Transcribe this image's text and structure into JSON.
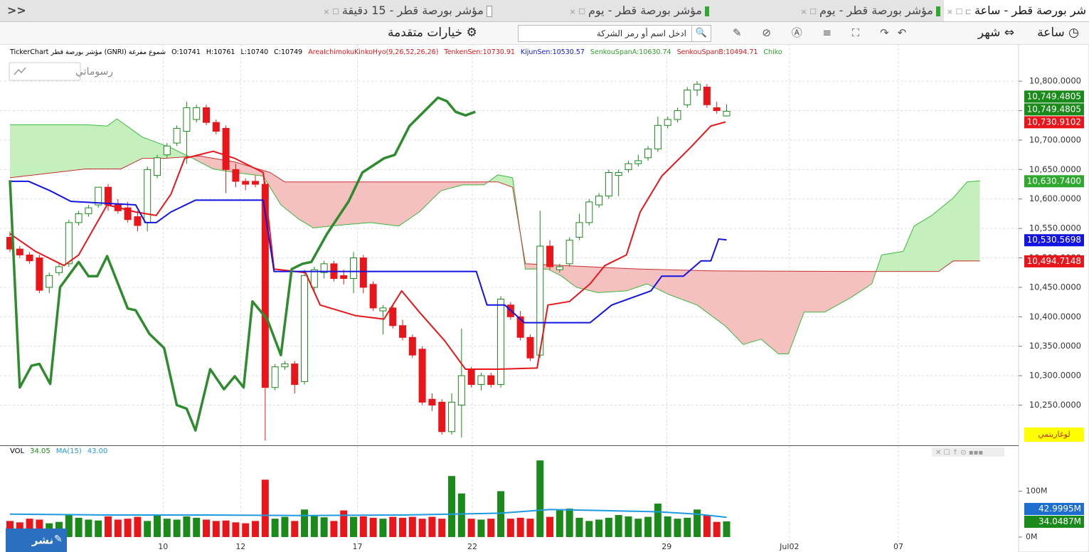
{
  "collapse": "<<",
  "tabs": [
    "شر بورصة قطر - ساعة",
    "مؤشر بورصة قطر - يوم",
    "مؤشر بورصة قطر - يوم",
    "مؤشر بورصة قطر - 15 دقيقة"
  ],
  "toolbar": {
    "hour": "ساعة",
    "month": "شهر",
    "search_placeholder": "ادخل اسم أو رمز الشركة",
    "advanced": "خيارات متقدمة"
  },
  "info_line": [
    {
      "text": "TickerChart مؤشر بورصة قطر (GNRI) شموع مفرغة",
      "color": "#000000"
    },
    {
      "text": "O:10741",
      "color": "#000000"
    },
    {
      "text": "H:10761",
      "color": "#000000"
    },
    {
      "text": "L:10740",
      "color": "#000000"
    },
    {
      "text": "C:10749",
      "color": "#000000"
    },
    {
      "text": "AreaIchimokuKinkoHyo(9,26,52,26,26)",
      "color": "#e8161b"
    },
    {
      "text": "TenkenSen:10730.91",
      "color": "#e8161b"
    },
    {
      "text": "KijunSen:10530.57",
      "color": "#1414e0"
    },
    {
      "text": "SenkouSpanA:10630.74",
      "color": "#2e9e2e"
    },
    {
      "text": "SenkouSpanB:10494.71",
      "color": "#e8161b"
    },
    {
      "text": "Chiko",
      "color": "#2e9e2e"
    }
  ],
  "drawings_button": "رسوماتي",
  "log_button": "لوغاريتمي",
  "publish_button": "نشر",
  "volume_legend": [
    {
      "text": "VOL",
      "color": "#000000"
    },
    {
      "text": "34.05",
      "color": "#1a8a1a"
    },
    {
      "text": "MA(15)",
      "color": "#1e9be0"
    },
    {
      "text": "43.00",
      "color": "#1e9be0"
    }
  ],
  "chart_data": [
    {
      "type": "candlestick",
      "up_color": "#1a8a1a",
      "down_color": "#e8161b",
      "ohlc": [
        [
          10535,
          10545,
          10510,
          10515
        ],
        [
          10515,
          10520,
          10500,
          10505
        ],
        [
          10505,
          10510,
          10490,
          10495
        ],
        [
          10500,
          10505,
          10440,
          10445
        ],
        [
          10450,
          10475,
          10440,
          10470
        ],
        [
          10475,
          10490,
          10470,
          10485
        ],
        [
          10490,
          10565,
          10485,
          10560
        ],
        [
          10560,
          10580,
          10555,
          10575
        ],
        [
          10575,
          10590,
          10570,
          10585
        ],
        [
          10590,
          10620,
          10585,
          10620
        ],
        [
          10620,
          10625,
          10580,
          10590
        ],
        [
          10590,
          10600,
          10575,
          10580
        ],
        [
          10585,
          10595,
          10560,
          10565
        ],
        [
          10570,
          10580,
          10545,
          10555
        ],
        [
          10560,
          10655,
          10545,
          10650
        ],
        [
          10640,
          10675,
          10635,
          10670
        ],
        [
          10675,
          10695,
          10670,
          10690
        ],
        [
          10695,
          10725,
          10690,
          10720
        ],
        [
          10715,
          10765,
          10660,
          10755
        ],
        [
          10735,
          10760,
          10730,
          10755
        ],
        [
          10755,
          10760,
          10725,
          10730
        ],
        [
          10730,
          10735,
          10710,
          10715
        ],
        [
          10720,
          10725,
          10610,
          10650
        ],
        [
          10650,
          10660,
          10620,
          10630
        ],
        [
          10630,
          10635,
          10615,
          10625
        ],
        [
          10630,
          10640,
          10620,
          10625
        ],
        [
          10625,
          10630,
          10190,
          10280
        ],
        [
          10280,
          10320,
          10275,
          10315
        ],
        [
          10315,
          10325,
          10310,
          10320
        ],
        [
          10320,
          10325,
          10270,
          10285
        ],
        [
          10290,
          10480,
          10285,
          10470
        ],
        [
          10450,
          10485,
          10440,
          10480
        ],
        [
          10475,
          10495,
          10465,
          10490
        ],
        [
          10490,
          10495,
          10460,
          10465
        ],
        [
          10470,
          10480,
          10455,
          10465
        ],
        [
          10465,
          10510,
          10440,
          10500
        ],
        [
          10500,
          10505,
          10440,
          10450
        ],
        [
          10455,
          10460,
          10410,
          10415
        ],
        [
          10410,
          10420,
          10370,
          10415
        ],
        [
          10415,
          10420,
          10380,
          10385
        ],
        [
          10385,
          10395,
          10360,
          10365
        ],
        [
          10365,
          10370,
          10330,
          10335
        ],
        [
          10345,
          10350,
          10250,
          10255
        ],
        [
          10260,
          10270,
          10240,
          10250
        ],
        [
          10255,
          10260,
          10200,
          10205
        ],
        [
          10205,
          10270,
          10200,
          10255
        ],
        [
          10250,
          10380,
          10195,
          10300
        ],
        [
          10310,
          10315,
          10280,
          10285
        ],
        [
          10285,
          10305,
          10275,
          10300
        ],
        [
          10300,
          10305,
          10280,
          10285
        ],
        [
          10285,
          10435,
          10280,
          10430
        ],
        [
          10420,
          10425,
          10395,
          10400
        ],
        [
          10400,
          10410,
          10360,
          10365
        ],
        [
          10365,
          10370,
          10325,
          10330
        ],
        [
          10335,
          10580,
          10330,
          10520
        ],
        [
          10520,
          10530,
          10480,
          10485
        ],
        [
          10480,
          10490,
          10475,
          10485
        ],
        [
          10490,
          10535,
          10485,
          10530
        ],
        [
          10535,
          10575,
          10530,
          10560
        ],
        [
          10560,
          10600,
          10555,
          10595
        ],
        [
          10590,
          10610,
          10585,
          10605
        ],
        [
          10605,
          10650,
          10600,
          10645
        ],
        [
          10640,
          10650,
          10605,
          10645
        ],
        [
          10650,
          10665,
          10645,
          10660
        ],
        [
          10660,
          10675,
          10655,
          10665
        ],
        [
          10670,
          10690,
          10665,
          10685
        ],
        [
          10685,
          10740,
          10680,
          10725
        ],
        [
          10725,
          10740,
          10720,
          10735
        ],
        [
          10735,
          10755,
          10730,
          10750
        ],
        [
          10760,
          10790,
          10755,
          10785
        ],
        [
          10785,
          10800,
          10775,
          10795
        ],
        [
          10790,
          10795,
          10755,
          10760
        ],
        [
          10755,
          10765,
          10745,
          10750
        ],
        [
          10741,
          10761,
          10740,
          10749
        ]
      ],
      "lines": [
        {
          "color": "#e8161b",
          "width": 2,
          "x": [
            0,
            2.6,
            5.5,
            7,
            9.9,
            12.8,
            14.9,
            16.4,
            17.8,
            20.7,
            22.9,
            25.8,
            26.9,
            30.1,
            31.6,
            35.2,
            38.1,
            39.9,
            41.7,
            44.3,
            46.4,
            49.7,
            53.7,
            54.8,
            57,
            59.1,
            60.6,
            62.8,
            64.2,
            66.4,
            69.3,
            71.4,
            72.9
          ],
          "values": [
            10541,
            10511,
            10487,
            10505,
            10590,
            10578,
            10572,
            10608,
            10669,
            10681,
            10669,
            10645,
            10481,
            10475,
            10420,
            10402,
            10396,
            10444,
            10408,
            10359,
            10311,
            10311,
            10313,
            10420,
            10426,
            10456,
            10487,
            10505,
            10578,
            10639,
            10687,
            10724,
            10730.91
          ]
        },
        {
          "color": "#1414e0",
          "width": 2,
          "x": [
            0,
            1.9,
            4.1,
            6.2,
            12.8,
            13.8,
            14.9,
            16.4,
            18.9,
            25.8,
            26.9,
            47.5,
            48.6,
            50.4,
            52.4,
            54.4,
            59.1,
            61.3,
            65.3,
            66.4,
            68.6,
            70.4,
            71.4,
            72.2,
            73
          ],
          "values": [
            10630,
            10630,
            10614,
            10596,
            10590,
            10560,
            10560,
            10578,
            10598,
            10598,
            10477,
            10477,
            10420,
            10420,
            10390,
            10390,
            10390,
            10420,
            10444,
            10469,
            10469,
            10495,
            10495,
            10532,
            10530.57
          ]
        },
        {
          "color": "#2e8b2e",
          "width": 3.5,
          "x": [
            0,
            1,
            2.2,
            3,
            4.1,
            5.1,
            7,
            8,
            8.9,
            9.9,
            12,
            12.8,
            14.2,
            15.7,
            17,
            18,
            18.9,
            20.4,
            21.8,
            22.9,
            23.8,
            24.7,
            26.2,
            27.6,
            28.7,
            29.8,
            30.7,
            32.3,
            34.5,
            35.9,
            38.1,
            39.2,
            40.7,
            43.6,
            44.5,
            45.4,
            46.4,
            47.4
          ],
          "values": [
            10632,
            10280,
            10317,
            10320,
            10286,
            10450,
            10493,
            10469,
            10469,
            10503,
            10414,
            10411,
            10371,
            10347,
            10250,
            10244,
            10207,
            10311,
            10277,
            10299,
            10280,
            10426,
            10396,
            10335,
            10481,
            10490,
            10493,
            10541,
            10596,
            10645,
            10669,
            10675,
            10724,
            10772,
            10766,
            10748,
            10742,
            10748
          ]
        }
      ],
      "cloud": {
        "span_a": {
          "color": "#3cb83c",
          "x": [
            0,
            7.7,
            9.9,
            10.9,
            13.5,
            16.4,
            18.6,
            20.7,
            22.9,
            25.8,
            27.6,
            29.4,
            30.9,
            33.8,
            36.7,
            39.6,
            41.7,
            43.9,
            46.1,
            48.3,
            49.7,
            51.2,
            52.5,
            54.8,
            56.2,
            57.7,
            59.9,
            62.8,
            64.9,
            67.1,
            70,
            72.9,
            74.7,
            76.5,
            78.3,
            79.3,
            80.9,
            83,
            85.6,
            87.8,
            88.8,
            91,
            92.1,
            93.9,
            96.1,
            97.5,
            98.8
          ],
          "values": [
            10726,
            10726,
            10724,
            10736,
            10705,
            10687,
            10669,
            10651,
            10645,
            10639,
            10590,
            10566,
            10551,
            10556,
            10560,
            10554,
            10578,
            10614,
            10624,
            10624,
            10641,
            10636,
            10481,
            10481,
            10469,
            10450,
            10441,
            10444,
            10456,
            10438,
            10420,
            10384,
            10353,
            10362,
            10337,
            10337,
            10408,
            10408,
            10432,
            10456,
            10505,
            10511,
            10554,
            10572,
            10602,
            10629,
            10630.74
          ]
        },
        "span_b": {
          "color": "#c83030",
          "x": [
            0,
            7.7,
            11.3,
            13.5,
            15.7,
            19.3,
            22.9,
            26.5,
            28,
            30.9,
            49.7,
            51.2,
            52.5,
            64.2,
            71.4,
            87.4,
            94.6,
            96.1,
            98.8
          ],
          "values": [
            10636,
            10651,
            10651,
            10669,
            10669,
            10673,
            10663,
            10645,
            10629,
            10629,
            10629,
            10620,
            10490,
            10481,
            10478,
            10477,
            10477,
            10495,
            10494.71
          ]
        },
        "up_fill": "#bfeeb6",
        "down_fill": "#f3b9b9"
      },
      "xlim": [
        0,
        102.6
      ],
      "xticks": [
        {
          "value": 15.6,
          "label": "10"
        },
        {
          "value": 23.5,
          "label": "12"
        },
        {
          "value": 35.4,
          "label": "17"
        },
        {
          "value": 47.1,
          "label": "22"
        },
        {
          "value": 66.9,
          "label": "29"
        },
        {
          "value": 79.4,
          "label": "Jul02"
        },
        {
          "value": 90.5,
          "label": "07"
        }
      ],
      "ylim": [
        10183,
        10863
      ],
      "yticks": [
        {
          "value": 10250,
          "label": "10,250.0000"
        },
        {
          "value": 10300,
          "label": "10,300.0000"
        },
        {
          "value": 10350,
          "label": "10,350.0000"
        },
        {
          "value": 10400,
          "label": "10,400.0000"
        },
        {
          "value": 10450,
          "label": "10,450.0000"
        },
        {
          "value": 10500,
          "label": "10,500.0000"
        },
        {
          "value": 10550,
          "label": "10,550.0000"
        },
        {
          "value": 10600,
          "label": "10,600.0000"
        },
        {
          "value": 10650,
          "label": "10,650.0000"
        },
        {
          "value": 10700,
          "label": "10,700.0000"
        },
        {
          "value": 10750,
          "label": "10,750.0000"
        },
        {
          "value": 10800,
          "label": "10,800.0000"
        }
      ],
      "grid": true,
      "price_markers": [
        {
          "value": 10749.4805,
          "label": "10,749.4805",
          "color": "#1a8a1a"
        },
        {
          "value": 10749.4805,
          "label": "10,749.4805",
          "color": "#1a8a1a"
        },
        {
          "value": 10730.9102,
          "label": "10,730.9102",
          "color": "#e8161b"
        },
        {
          "value": 10630.74,
          "label": "10,630.7400",
          "color": "#2ea82e"
        },
        {
          "value": 10530.5698,
          "label": "10,530.5698",
          "color": "#1414e0"
        },
        {
          "value": 10494.7148,
          "label": "10,494.7148",
          "color": "#e8161b"
        }
      ]
    },
    {
      "type": "bar",
      "values": [
        35,
        32,
        40,
        38,
        30,
        33,
        50,
        42,
        38,
        36,
        45,
        38,
        40,
        44,
        35,
        48,
        40,
        38,
        45,
        42,
        38,
        35,
        36,
        32,
        30,
        35,
        125,
        40,
        44,
        35,
        60,
        48,
        43,
        35,
        58,
        44,
        45,
        42,
        40,
        44,
        42,
        44,
        40,
        44,
        40,
        133,
        95,
        40,
        38,
        40,
        100,
        40,
        42,
        40,
        167,
        44,
        58,
        62,
        42,
        35,
        38,
        42,
        48,
        45,
        40,
        44,
        73,
        45,
        40,
        42,
        60,
        48,
        33,
        34.05
      ],
      "ma": {
        "color": "#1e9be0",
        "x": [
          0,
          10,
          20,
          30,
          40,
          45,
          50,
          55,
          60,
          66,
          70,
          73
        ],
        "values": [
          50,
          48,
          48,
          47,
          48,
          50,
          52,
          60,
          58,
          55,
          50,
          43
        ]
      },
      "ylim": [
        -10.9,
        198.4
      ],
      "yticks": [
        {
          "value": 0,
          "label": "0M"
        },
        {
          "value": 100,
          "label": "100M"
        }
      ],
      "grid": true,
      "markers": [
        {
          "value": 42.9995,
          "label": "42.9995M",
          "color": "#1e6fd0"
        },
        {
          "value": 34.0487,
          "label": "34.0487M",
          "color": "#1a8a1a"
        }
      ]
    }
  ]
}
